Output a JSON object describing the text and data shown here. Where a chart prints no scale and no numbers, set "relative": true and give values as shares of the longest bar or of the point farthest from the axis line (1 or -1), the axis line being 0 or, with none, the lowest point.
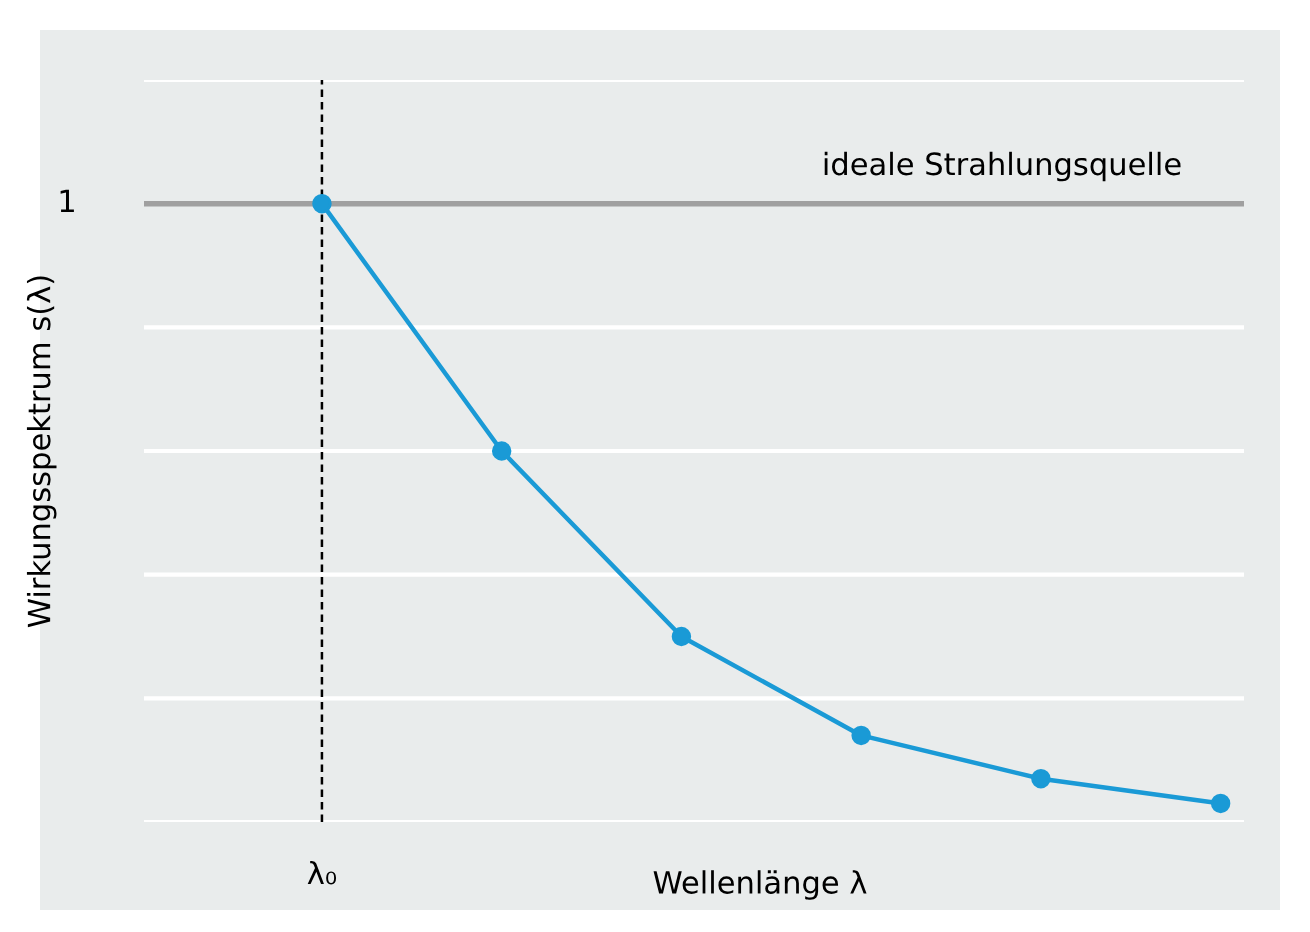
{
  "chart_data": {
    "type": "line",
    "relative": true,
    "categories": [
      null,
      null,
      null,
      null,
      null,
      null
    ],
    "series": [
      {
        "color": "#1a9ad6",
        "values": [
          1,
          0.6,
          0.3,
          0.14,
          0.07,
          0.03
        ]
      }
    ],
    "xlabel": "Wellenlänge λ",
    "ylabel": "Wirkungsspektrum s(λ)",
    "annotations": [
      "1",
      "λ₀"
    ],
    "ref_lines": [
      {
        "axis": "y",
        "value": 1,
        "label": "ideale Strahlungsquelle",
        "color": "#a0a0a0",
        "line_style": "solid"
      }
    ],
    "marker": "circle",
    "line_style": "solid",
    "grid": "y",
    "legend": false
  }
}
